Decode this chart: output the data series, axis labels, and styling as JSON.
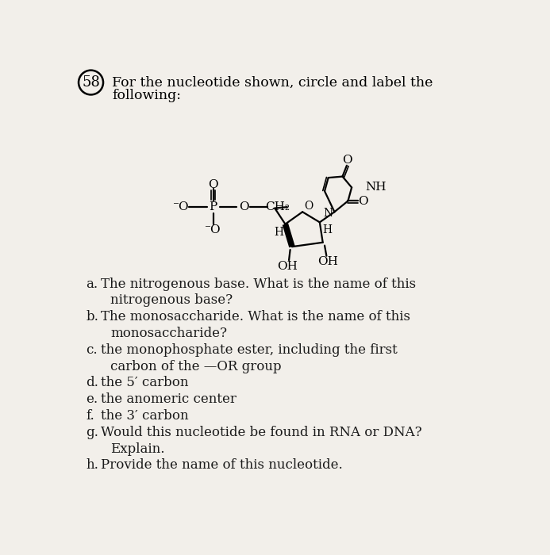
{
  "title_number": "58",
  "title_text1": "For the nucleotide shown, circle and label the",
  "title_text2": "following:",
  "background_color": "#f2efea",
  "text_color": "#1a1a1a",
  "mol_bg": "#e8e4de",
  "entries": [
    [
      "a.",
      "The nitrogenous base. What is the name of this"
    ],
    [
      "",
      "nitrogenous base?"
    ],
    [
      "b.",
      "The monosaccharide. What is the name of this"
    ],
    [
      "",
      "monosaccharide?"
    ],
    [
      "c.",
      "the monophosphate ester, including the first"
    ],
    [
      "",
      "carbon of the —OR group"
    ],
    [
      "d.",
      "the 5′ carbon"
    ],
    [
      "e.",
      "the anomeric center"
    ],
    [
      "f.",
      "the 3′ carbon"
    ],
    [
      "g.",
      "Would this nucleotide be found in RNA or DNA?"
    ],
    [
      "",
      "Explain."
    ],
    [
      "h.",
      "Provide the name of this nucleotide."
    ]
  ]
}
